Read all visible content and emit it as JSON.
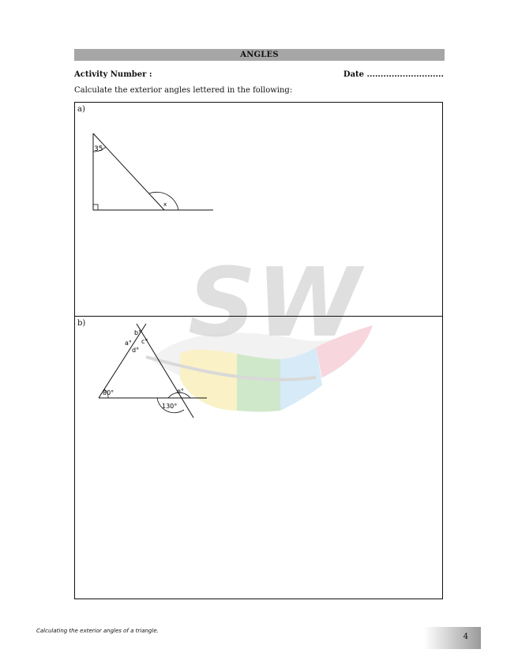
{
  "header": {
    "title": "ANGLES",
    "activity_label": "Activity Number :",
    "date_label": "Date ............................"
  },
  "instruction": "Calculate the exterior angles lettered in the following:",
  "part_a": {
    "label": "a)",
    "angle_given": "35",
    "angle_unknown": "x"
  },
  "part_b": {
    "label": "b)",
    "angle_a": "a°",
    "angle_b": "b°",
    "angle_c": "c°",
    "angle_d": "d°",
    "angle_e": "e°",
    "angle_80": "80°",
    "angle_130": "130°"
  },
  "watermark": {
    "text": "SW",
    "colors": [
      "#f6e79a",
      "#a8d6a0",
      "#b6dbf2",
      "#f2b6c4"
    ]
  },
  "footer": {
    "caption": "Calculating the exterior angles of a triangle.",
    "page_number": "4"
  }
}
